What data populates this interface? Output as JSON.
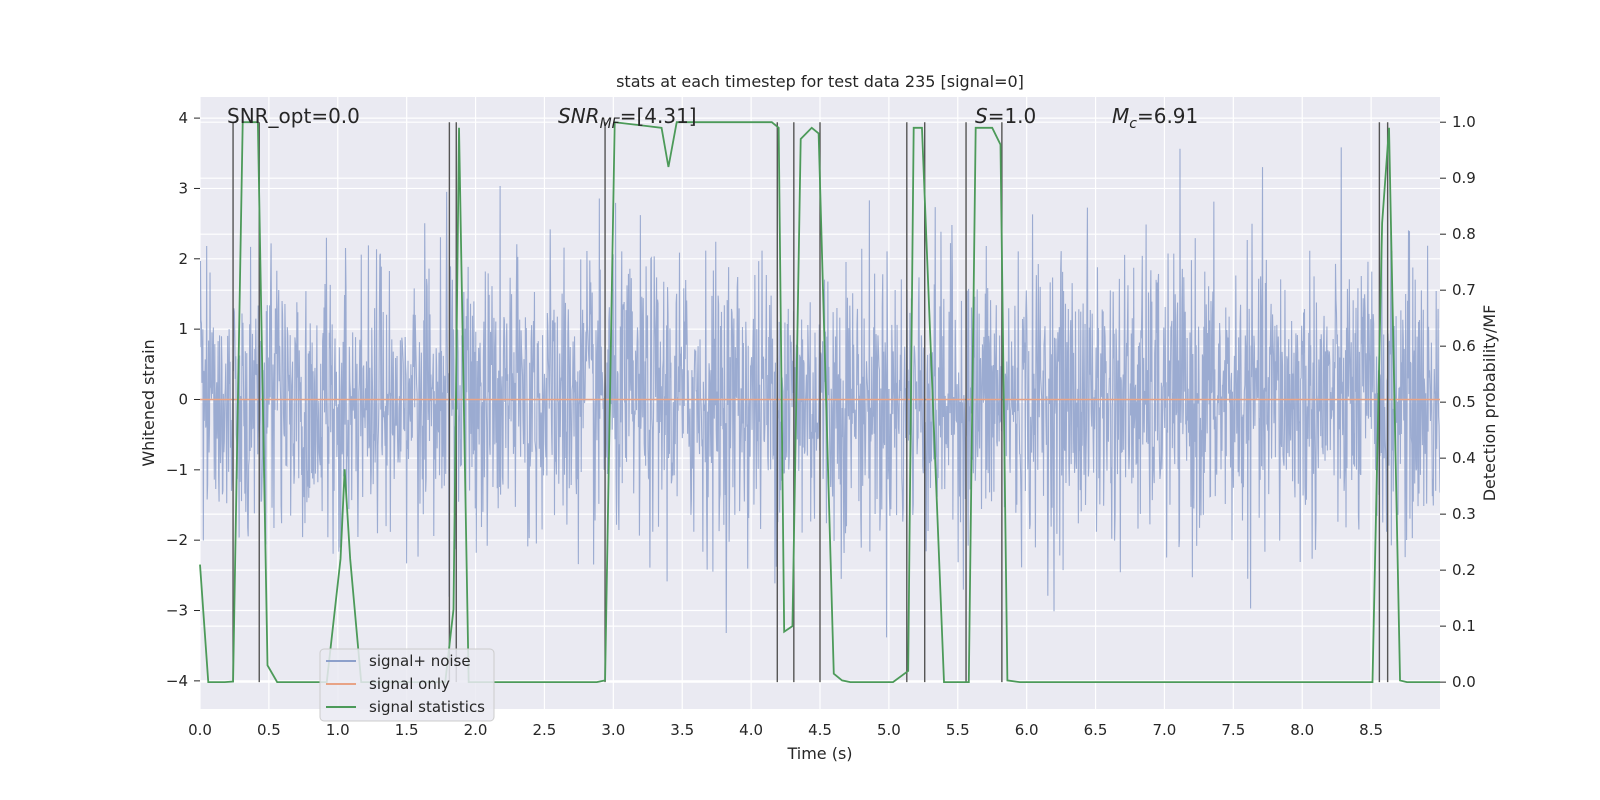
{
  "chart_data": {
    "type": "line",
    "title": "stats at each timestep for test data 235 [signal=0]",
    "xlabel": "Time (s)",
    "ylabel": "Whitened strain",
    "y2label": "Detection probability/MF",
    "xlim": [
      0.0,
      9.0
    ],
    "ylim": [
      -4.4,
      4.3
    ],
    "y2lim": [
      -0.048,
      1.045
    ],
    "xticks": [
      "0.0",
      "0.5",
      "1.0",
      "1.5",
      "2.0",
      "2.5",
      "3.0",
      "3.5",
      "4.0",
      "4.5",
      "5.0",
      "5.5",
      "6.0",
      "6.5",
      "7.0",
      "7.5",
      "8.0",
      "8.5"
    ],
    "yticks": [
      "4",
      "3",
      "2",
      "1",
      "0",
      "−1",
      "−2",
      "−3",
      "−4"
    ],
    "y2ticks": [
      "1.0",
      "0.9",
      "0.8",
      "0.7",
      "0.6",
      "0.5",
      "0.4",
      "0.3",
      "0.2",
      "0.1",
      "0.0"
    ],
    "legend_position": "lower-left",
    "annotations": {
      "snr_opt": "SNR_opt=0.0",
      "snr_mf_main": "SNR",
      "snr_mf_sub": "MF",
      "snr_mf_value": "=[4.31]",
      "s_symbol": "S",
      "s_value": "=1.0",
      "mc_main": "M",
      "mc_sub": "c",
      "mc_value": "=6.91"
    },
    "series": [
      {
        "name": "signal+ noise",
        "color": "#8da0cb",
        "kind": "noise",
        "amplitude_range": [
          -4.0,
          4.0
        ],
        "typical_std": 1.0
      },
      {
        "name": "signal only",
        "color": "#e8a386",
        "kind": "constant",
        "value": 0.0
      },
      {
        "name": "signal statistics",
        "color": "#4c9a59",
        "kind": "probability",
        "x": [
          0.0,
          0.06,
          0.18,
          0.24,
          0.31,
          0.42,
          0.49,
          0.56,
          0.92,
          1.02,
          1.05,
          1.09,
          1.17,
          1.24,
          1.78,
          1.84,
          1.88,
          1.95,
          2.05,
          2.88,
          2.94,
          3.01,
          3.35,
          3.4,
          3.46,
          3.55,
          4.15,
          4.2,
          4.24,
          4.3,
          4.36,
          4.44,
          4.49,
          4.6,
          4.66,
          4.72,
          5.03,
          5.14,
          5.18,
          5.24,
          5.4,
          5.44,
          5.58,
          5.63,
          5.75,
          5.81,
          5.86,
          5.95,
          8.51,
          8.58,
          8.63,
          8.71,
          8.76,
          9.0
        ],
        "y": [
          0.21,
          0.0,
          0.0,
          0.001,
          1.0,
          1.0,
          0.03,
          0.0,
          0.0,
          0.22,
          0.38,
          0.22,
          0.0,
          0.0,
          0.0,
          0.13,
          0.99,
          0.0,
          0.0,
          0.0,
          0.003,
          1.0,
          0.99,
          0.92,
          1.0,
          1.0,
          1.0,
          0.99,
          0.09,
          0.1,
          0.97,
          0.99,
          0.98,
          0.015,
          0.003,
          0.0,
          0.0,
          0.02,
          0.99,
          0.99,
          0.0,
          0.0,
          0.0,
          0.99,
          0.99,
          0.96,
          0.003,
          0.0,
          0.0,
          0.82,
          0.99,
          0.003,
          0.0,
          0.0
        ]
      }
    ],
    "event_markers_x": [
      0.24,
      0.43,
      1.81,
      1.86,
      2.94,
      4.19,
      4.31,
      4.5,
      5.13,
      5.26,
      5.56,
      5.82,
      8.56,
      8.62
    ]
  }
}
